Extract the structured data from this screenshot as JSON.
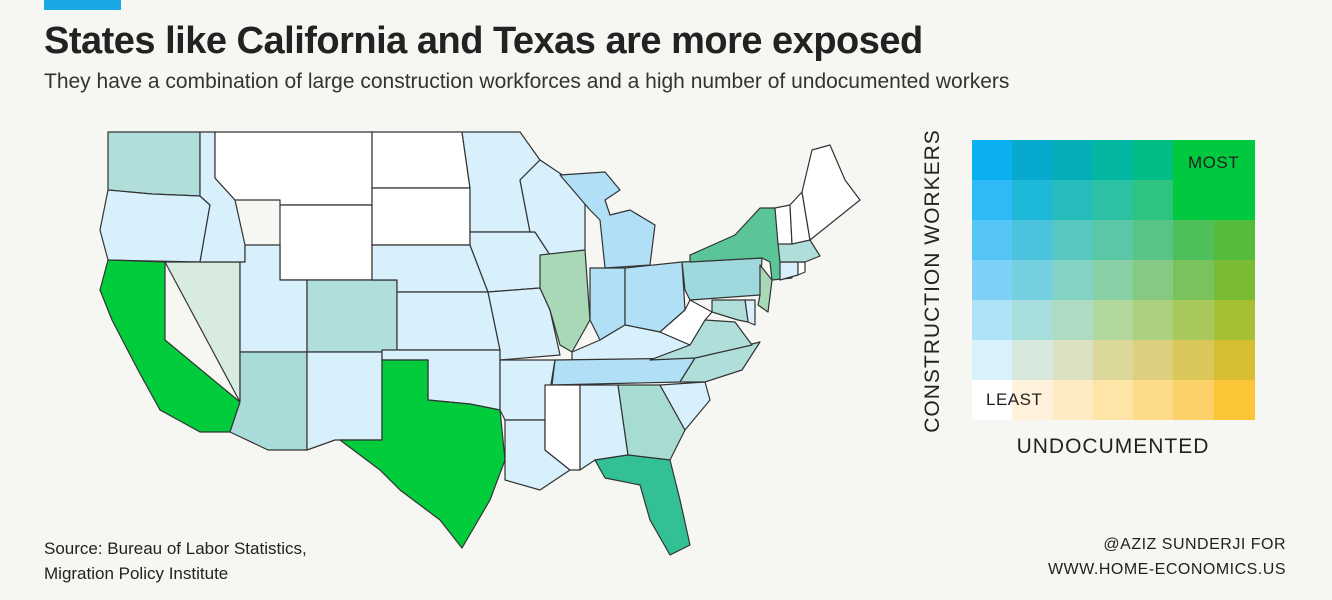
{
  "header": {
    "accent_color": "#1aa7e8",
    "title": "States like California and Texas are more exposed",
    "subtitle": "They have a combination of large construction workforces and a high number of undocumented workers"
  },
  "legend": {
    "y_label": "CONSTRUCTION WORKERS",
    "x_label": "UNDOCUMENTED",
    "most_label": "MOST",
    "least_label": "LEAST",
    "colors_top_to_bottom": [
      [
        "#0ab0ef",
        "#08a9cf",
        "#05adb6",
        "#04b7a3",
        "#03bd86",
        "#00c940",
        "#00c940"
      ],
      [
        "#2fbaf5",
        "#1db8d7",
        "#26bcbb",
        "#2cc1a3",
        "#2cc47f",
        "#00c940",
        "#00c940"
      ],
      [
        "#55c5f5",
        "#4bc3dd",
        "#57c8c0",
        "#5ac8a6",
        "#58c488",
        "#4fbf5c",
        "#55bb3a"
      ],
      [
        "#7ed1f6",
        "#74cfe1",
        "#82d3c6",
        "#8ad0a6",
        "#86c982",
        "#79c25c",
        "#79bb33"
      ],
      [
        "#aee2f6",
        "#a8ddde",
        "#aedcc2",
        "#b3d89e",
        "#acd07e",
        "#a7c85b",
        "#a5c032"
      ],
      [
        "#d8f1fb",
        "#d7e8dd",
        "#dbe2c2",
        "#dcd89c",
        "#dccf7e",
        "#d9c75a",
        "#d6bd31"
      ],
      [
        "#ffffff",
        "#fff1dc",
        "#ffebc3",
        "#fee4a6",
        "#fedb88",
        "#fdd16a",
        "#fcc437"
      ]
    ]
  },
  "source": {
    "line1": "Source: Bureau of Labor Statistics,",
    "line2": "Migration Policy Institute"
  },
  "credit": {
    "line1": "@AZIZ SUNDERJI FOR",
    "line2": "WWW.HOME-ECONOMICS.US"
  },
  "map_fills": {
    "CA": "#00cc3c",
    "TX": "#00cc3c",
    "FL": "#33c095",
    "NY": "#5bc598",
    "GA": "#a6dcd2",
    "IL": "#a9d8b6",
    "AZ": "#a9dcd8",
    "WA": "#b0dfdb",
    "CO": "#b0dfdb",
    "PA": "#9fd9de",
    "NC": "#b0dfdb",
    "VA": "#b0dfdb",
    "NJ": "#a9d8b6",
    "MA": "#b0dfdb",
    "MD": "#b0dfdb",
    "NV": "#d8ebe0",
    "MI": "#b0dff6",
    "OH": "#b0dff6",
    "IN": "#b0dff6",
    "TN": "#b0dff6",
    "ID": "#d8f0fb",
    "OR": "#d8f0fb",
    "UT": "#d8f0fb",
    "NM": "#d8f0fb",
    "NE": "#d8f0fb",
    "KS": "#d8f0fb",
    "OK": "#d8f0fb",
    "MN": "#d8f0fb",
    "IA": "#d8f0fb",
    "MO": "#d8f0fb",
    "AR": "#d8f0fb",
    "LA": "#d8f0fb",
    "AL": "#d8f0fb",
    "SC": "#d8f0fb",
    "KY": "#d8f0fb",
    "WI": "#d8f0fb",
    "CT": "#d8f0fb",
    "DE": "#d8f0fb",
    "MT": "#ffffff",
    "WY": "#ffffff",
    "ND": "#ffffff",
    "SD": "#ffffff",
    "MS": "#ffffff",
    "WV": "#ffffff",
    "ME": "#ffffff",
    "NH": "#ffffff",
    "VT": "#ffffff",
    "RI": "#ffffff"
  }
}
